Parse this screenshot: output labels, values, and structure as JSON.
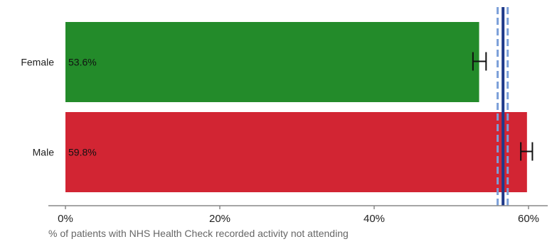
{
  "chart_data": {
    "type": "bar",
    "orientation": "horizontal",
    "categories": [
      "Female",
      "Male"
    ],
    "values": [
      53.6,
      59.8
    ],
    "data_labels": [
      "53.6%",
      "59.8%"
    ],
    "colors": [
      "#238b2a",
      "#d22533"
    ],
    "error_bars": [
      {
        "low": 52.8,
        "high": 54.5
      },
      {
        "low": 59.0,
        "high": 60.5
      }
    ],
    "reference_line": {
      "value": 56.7,
      "ci_low": 56.0,
      "ci_high": 57.3,
      "color": "#1f3a8a",
      "ci_color": "#7b9fd9"
    },
    "xlabel": "% of patients with NHS Health Check recorded activity not attending",
    "ylabel": "",
    "xlim": [
      0,
      60
    ],
    "x_ticks": [
      0,
      20,
      40,
      60
    ],
    "x_tick_labels": [
      "0%",
      "20%",
      "40%",
      "60%"
    ],
    "grid": false,
    "legend": "none"
  }
}
